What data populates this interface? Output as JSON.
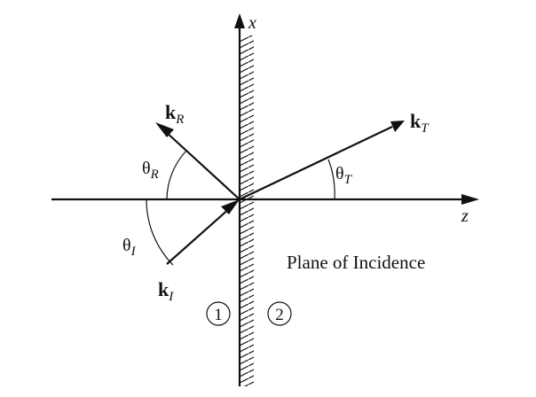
{
  "axes": {
    "x": "x",
    "z": "z"
  },
  "vectors": {
    "incident": {
      "main": "k",
      "sub": "I"
    },
    "reflected": {
      "main": "k",
      "sub": "R"
    },
    "transmitted": {
      "main": "k",
      "sub": "T"
    }
  },
  "angles": {
    "incident": {
      "main": "θ",
      "sub": "I"
    },
    "reflected": {
      "main": "θ",
      "sub": "R"
    },
    "transmitted": {
      "main": "θ",
      "sub": "T"
    }
  },
  "plane_label": "Plane of Incidence",
  "media": [
    "1",
    "2"
  ]
}
